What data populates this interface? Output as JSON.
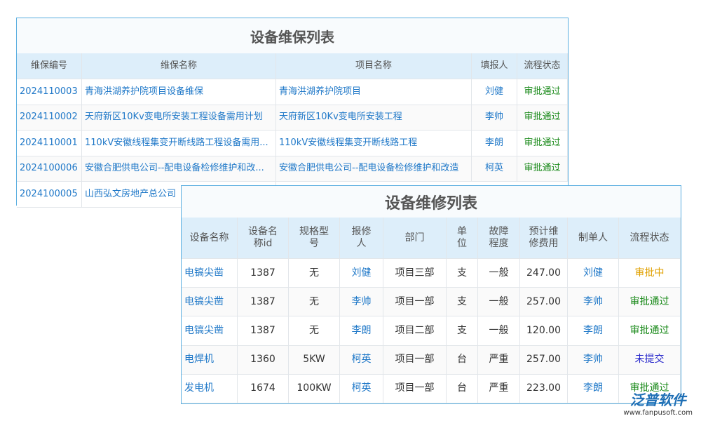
{
  "maintenance_table": {
    "title": "设备维保列表",
    "headers": [
      "维保编号",
      "维保名称",
      "项目名称",
      "填报人",
      "流程状态"
    ],
    "rows": [
      [
        "2024110003",
        "青海洪湖养护院项目设备维保",
        "青海洪湖养护院项目",
        "刘健",
        "审批通过"
      ],
      [
        "2024110002",
        "天府新区10Kv变电所安装工程设备需用计划",
        "天府新区10Kv变电所安装工程",
        "李帅",
        "审批通过"
      ],
      [
        "2024110001",
        "110kV安徽线程集变开断线路工程设备需用...",
        "110kV安徽线程集变开断线路工程",
        "李朗",
        "审批通过"
      ],
      [
        "2024100006",
        "安徽合肥供电公司--配电设备检修维护和改...",
        "安徽合肥供电公司--配电设备检修维护和改造",
        "柯英",
        "审批通过"
      ],
      [
        "2024100005",
        "山西弘文房地产总公司"
      ]
    ]
  },
  "repair_table": {
    "title": "设备维修列表",
    "headers": [
      "设备名称",
      "设备名\n称id",
      "规格型\n号",
      "报修\n人",
      "部门",
      "单\n位",
      "故障\n程度",
      "预计维\n修费用",
      "制单人",
      "流程状态"
    ],
    "rows": [
      [
        "电镐尖凿",
        "1387",
        "无",
        "刘健",
        "项目三部",
        "支",
        "一般",
        "247.00",
        "刘健",
        "审批中"
      ],
      [
        "电镐尖凿",
        "1387",
        "无",
        "李帅",
        "项目一部",
        "支",
        "一般",
        "257.00",
        "李帅",
        "审批通过"
      ],
      [
        "电镐尖凿",
        "1387",
        "无",
        "李朗",
        "项目二部",
        "支",
        "一般",
        "120.00",
        "李朗",
        "审批通过"
      ],
      [
        "电焊机",
        "1360",
        "5KW",
        "柯英",
        "项目一部",
        "台",
        "严重",
        "257.00",
        "李帅",
        "未提交"
      ],
      [
        "发电机",
        "1674",
        "100KW",
        "柯英",
        "项目一部",
        "台",
        "严重",
        "223.00",
        "李朗",
        "审批通过"
      ]
    ]
  },
  "logo": {
    "name": "泛普软件",
    "url": "www.fanpusoft.com"
  }
}
